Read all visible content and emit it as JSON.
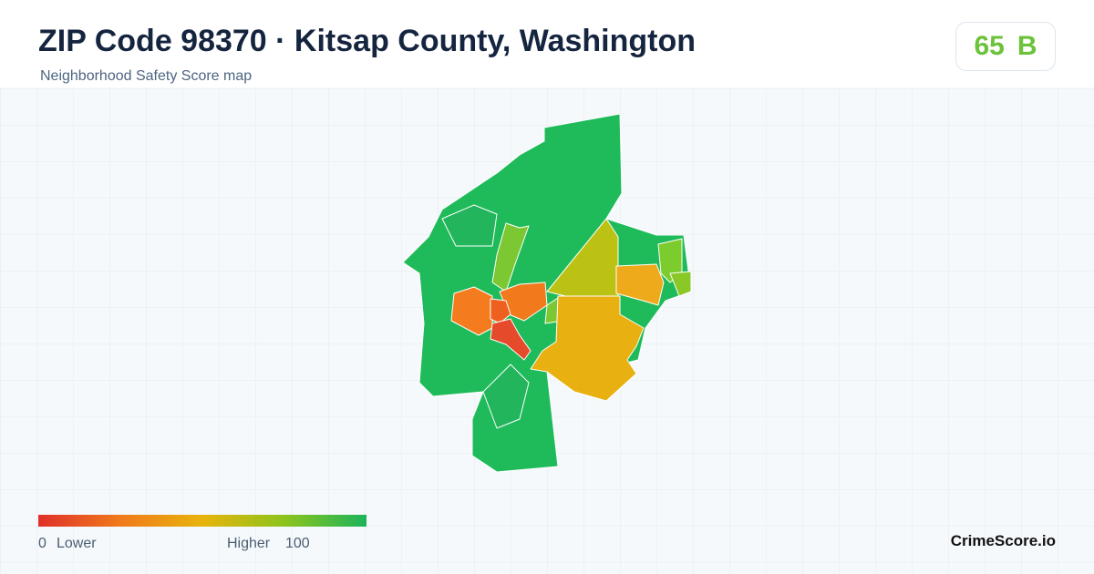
{
  "header": {
    "title": "ZIP Code 98370 · Kitsap County, Washington",
    "subtitle": "Neighborhood Safety Score map",
    "score": 65,
    "grade": "B"
  },
  "legend": {
    "min": 0,
    "min_label": "Lower",
    "max_label": "Higher",
    "max": 100
  },
  "footer": {
    "brand": "CrimeScore.io"
  }
}
